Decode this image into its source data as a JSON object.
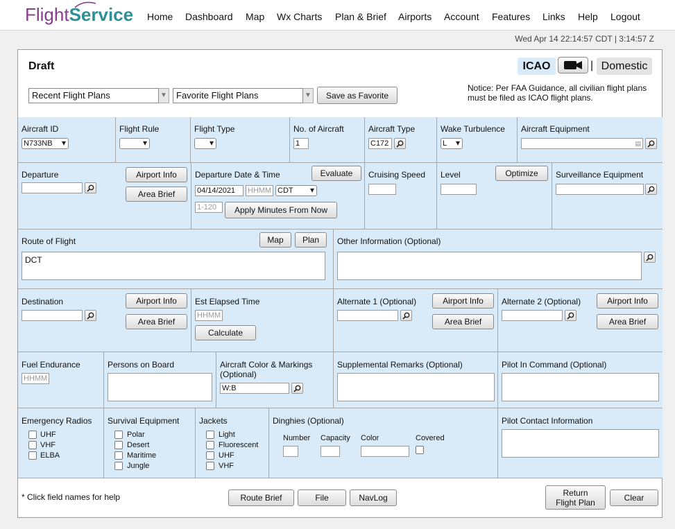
{
  "nav": {
    "logo_part1": "Flight",
    "logo_part2": "Service",
    "items": [
      "Home",
      "Dashboard",
      "Map",
      "Wx Charts",
      "Plan & Brief",
      "Airports",
      "Account",
      "Features",
      "Links",
      "Help",
      "Logout"
    ]
  },
  "clock": "Wed Apr 14 22:14:57 CDT | 3:14:57 Z",
  "header": {
    "title": "Draft",
    "icao": "ICAO",
    "separator": "|",
    "domestic": "Domestic",
    "recent_plans": "Recent Flight Plans",
    "favorite_plans": "Favorite Flight Plans",
    "save_favorite": "Save as Favorite",
    "notice": "Notice: Per FAA Guidance, all civilian flight plans must be filed as ICAO flight plans."
  },
  "row1": {
    "aircraft_id_label": "Aircraft ID",
    "aircraft_id_value": "N733NB",
    "flight_rule_label": "Flight Rule",
    "flight_type_label": "Flight Type",
    "num_aircraft_label": "No. of Aircraft",
    "num_aircraft_value": "1",
    "aircraft_type_label": "Aircraft Type",
    "aircraft_type_value": "C172",
    "wake_label": "Wake Turbulence",
    "wake_value": "L",
    "equipment_label": "Aircraft Equipment"
  },
  "row2": {
    "departure_label": "Departure",
    "airport_info": "Airport Info",
    "area_brief": "Area Brief",
    "dep_date_label": "Departure Date & Time",
    "evaluate": "Evaluate",
    "date_value": "04/14/2021",
    "time_placeholder": "HHMM",
    "tz_value": "CDT",
    "minutes_placeholder": "1-120",
    "apply_minutes": "Apply Minutes From Now",
    "cruising_label": "Cruising Speed",
    "level_label": "Level",
    "optimize": "Optimize",
    "surveillance_label": "Surveillance Equipment"
  },
  "row3": {
    "route_label": "Route of Flight",
    "map_btn": "Map",
    "plan_btn": "Plan",
    "route_value": "DCT",
    "other_label": "Other Information (Optional)"
  },
  "row4": {
    "destination_label": "Destination",
    "airport_info": "Airport Info",
    "area_brief": "Area Brief",
    "ete_label": "Est Elapsed Time",
    "ete_placeholder": "HHMM",
    "calculate": "Calculate",
    "alt1_label": "Alternate 1 (Optional)",
    "alt2_label": "Alternate 2 (Optional)"
  },
  "row5": {
    "fuel_label": "Fuel Endurance",
    "fuel_placeholder": "HHMM",
    "persons_label": "Persons on Board",
    "color_label_1": "Aircraft Color & Markings",
    "color_label_2": "(Optional)",
    "color_value": "W:B",
    "remarks_label": "Supplemental Remarks (Optional)",
    "pic_label": "Pilot In Command (Optional)"
  },
  "row6": {
    "radios_label": "Emergency Radios",
    "radios": [
      "UHF",
      "VHF",
      "ELBA"
    ],
    "survival_label": "Survival Equipment",
    "survival": [
      "Polar",
      "Desert",
      "Maritime",
      "Jungle"
    ],
    "jackets_label": "Jackets",
    "jackets": [
      "Light",
      "Fluorescent",
      "UHF",
      "VHF"
    ],
    "dinghies_label": "Dinghies (Optional)",
    "number_label": "Number",
    "capacity_label": "Capacity",
    "color_label": "Color",
    "covered_label": "Covered",
    "contact_label": "Pilot Contact Information"
  },
  "footer": {
    "help_note": "* Click field names for help",
    "route_brief": "Route Brief",
    "file": "File",
    "navlog": "NavLog",
    "return_1": "Return",
    "return_2": "Flight Plan",
    "clear": "Clear"
  },
  "colors": {
    "section_bg": "#d9ebf8",
    "logo_purple": "#8a3c8f",
    "logo_teal": "#2e8f99"
  }
}
